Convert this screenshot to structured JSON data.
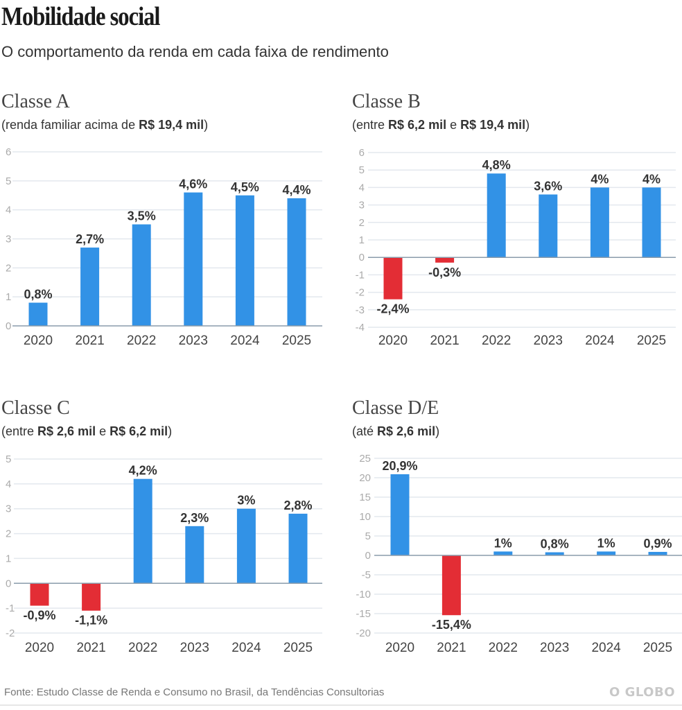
{
  "header": {
    "title": "Mobilidade social",
    "subtitle": "O comportamento da renda em cada faixa de rendimento"
  },
  "colors": {
    "positive": "#3292e6",
    "negative": "#e32d35",
    "grid": "#e3e8ee",
    "zero_line": "#8a9bab",
    "tick_label": "#aaaaaa",
    "value_label": "#333333"
  },
  "footer": {
    "source": "Fonte: Estudo Classe de Renda e Consumo no Brasil, da Tendências Consultorias",
    "logo": "O GLOBO"
  },
  "chart_data": [
    {
      "id": "classe-a",
      "type": "bar",
      "title": "Classe A",
      "subtitle_parts": [
        {
          "text": "(renda familiar acima de ",
          "bold": false
        },
        {
          "text": "R$ 19,4 mil",
          "bold": true
        },
        {
          "text": ")",
          "bold": false
        }
      ],
      "categories": [
        "2020",
        "2021",
        "2022",
        "2023",
        "2024",
        "2025"
      ],
      "values": [
        0.8,
        2.7,
        3.5,
        4.6,
        4.5,
        4.4
      ],
      "value_labels": [
        "0,8%",
        "2,7%",
        "3,5%",
        "4,6%",
        "4,5%",
        "4,4%"
      ],
      "ylim": [
        0,
        6
      ],
      "yticks": [
        0,
        1,
        2,
        3,
        4,
        5,
        6
      ],
      "ytick_labels": [
        "0",
        "1",
        "2",
        "3",
        "4",
        "5",
        "6"
      ],
      "xlabel": "",
      "ylabel": "",
      "grid": true,
      "legend": "none"
    },
    {
      "id": "classe-b",
      "type": "bar",
      "title": "Classe B",
      "subtitle_parts": [
        {
          "text": "(entre ",
          "bold": false
        },
        {
          "text": "R$ 6,2 mil",
          "bold": true
        },
        {
          "text": " e ",
          "bold": false
        },
        {
          "text": "R$ 19,4 mil",
          "bold": true
        },
        {
          "text": ")",
          "bold": false
        }
      ],
      "categories": [
        "2020",
        "2021",
        "2022",
        "2023",
        "2024",
        "2025"
      ],
      "values": [
        -2.4,
        -0.3,
        4.8,
        3.6,
        4,
        4
      ],
      "value_labels": [
        "-2,4%",
        "-0,3%",
        "4,8%",
        "3,6%",
        "4%",
        "4%"
      ],
      "ylim": [
        -4,
        6
      ],
      "yticks": [
        -4,
        -3,
        -2,
        -1,
        0,
        1,
        2,
        3,
        4,
        5,
        6
      ],
      "ytick_labels": [
        "-4",
        "-3",
        "-2",
        "-1",
        "0",
        "1",
        "2",
        "3",
        "4",
        "5",
        "6"
      ],
      "xlabel": "",
      "ylabel": "",
      "grid": true,
      "legend": "none"
    },
    {
      "id": "classe-c",
      "type": "bar",
      "title": "Classe C",
      "subtitle_parts": [
        {
          "text": "(entre ",
          "bold": false
        },
        {
          "text": "R$ 2,6 mil",
          "bold": true
        },
        {
          "text": " e ",
          "bold": false
        },
        {
          "text": "R$ 6,2 mil",
          "bold": true
        },
        {
          "text": ")",
          "bold": false
        }
      ],
      "categories": [
        "2020",
        "2021",
        "2022",
        "2023",
        "2024",
        "2025"
      ],
      "values": [
        -0.9,
        -1.1,
        4.2,
        2.3,
        3,
        2.8
      ],
      "value_labels": [
        "-0,9%",
        "-1,1%",
        "4,2%",
        "2,3%",
        "3%",
        "2,8%"
      ],
      "ylim": [
        -2,
        5
      ],
      "yticks": [
        -2,
        -1,
        0,
        1,
        2,
        3,
        4,
        5
      ],
      "ytick_labels": [
        "-2",
        "-1",
        "0",
        "1",
        "2",
        "3",
        "4",
        "5"
      ],
      "xlabel": "",
      "ylabel": "",
      "grid": true,
      "legend": "none"
    },
    {
      "id": "classe-de",
      "type": "bar",
      "title": "Classe D/E",
      "subtitle_parts": [
        {
          "text": "(até ",
          "bold": false
        },
        {
          "text": "R$ 2,6 mil",
          "bold": true
        },
        {
          "text": ")",
          "bold": false
        }
      ],
      "categories": [
        "2020",
        "2021",
        "2022",
        "2023",
        "2024",
        "2025"
      ],
      "values": [
        20.9,
        -15.4,
        1,
        0.8,
        1,
        0.9
      ],
      "value_labels": [
        "20,9%",
        "-15,4%",
        "1%",
        "0,8%",
        "1%",
        "0,9%"
      ],
      "ylim": [
        -20,
        25
      ],
      "yticks": [
        -20,
        -15,
        -10,
        -5,
        0,
        5,
        10,
        15,
        20,
        25
      ],
      "ytick_labels": [
        "-20",
        "-15",
        "-10",
        "-5",
        "0",
        "5",
        "10",
        "15",
        "20",
        "25"
      ],
      "xlabel": "",
      "ylabel": "",
      "grid": true,
      "legend": "none"
    }
  ]
}
